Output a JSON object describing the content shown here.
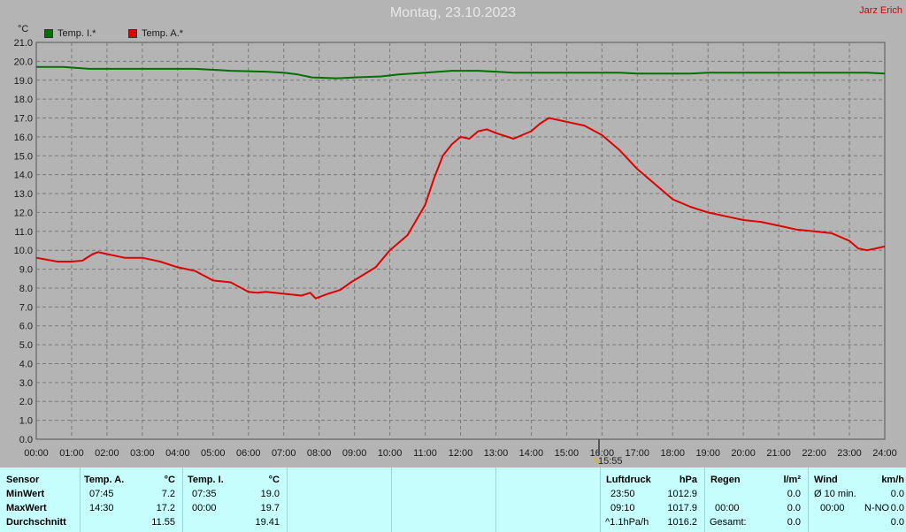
{
  "header": {
    "title": "Montag, 23.10.2023",
    "author": "Jarz Erich",
    "unit": "°C"
  },
  "legend": [
    {
      "label": "Temp. I.*",
      "color": "#007000"
    },
    {
      "label": "Temp. A.*",
      "color": "#e00000"
    }
  ],
  "now_marker": {
    "label": "15:55"
  },
  "chart_data": {
    "type": "line",
    "title": "Montag, 23.10.2023",
    "ylabel": "°C",
    "ylim": [
      0,
      21
    ],
    "xlim": [
      0,
      24
    ],
    "grid": true,
    "legend_position": "top-left",
    "y_ticks": [
      "0.0",
      "1.0",
      "2.0",
      "3.0",
      "4.0",
      "5.0",
      "6.0",
      "7.0",
      "8.0",
      "9.0",
      "10.0",
      "11.0",
      "12.0",
      "13.0",
      "14.0",
      "15.0",
      "16.0",
      "17.0",
      "18.0",
      "19.0",
      "20.0",
      "21.0"
    ],
    "x_ticks": [
      "00:00",
      "01:00",
      "02:00",
      "03:00",
      "04:00",
      "05:00",
      "06:00",
      "07:00",
      "08:00",
      "09:00",
      "10:00",
      "11:00",
      "12:00",
      "13:00",
      "14:00",
      "15:00",
      "16:00",
      "17:00",
      "18:00",
      "19:00",
      "20:00",
      "21:00",
      "22:00",
      "23:00",
      "24:00"
    ],
    "series": [
      {
        "name": "Temp. I.*",
        "color": "#007000",
        "x": [
          0,
          0.75,
          1.5,
          2.5,
          3.5,
          4.5,
          5.5,
          6.5,
          7,
          7.4,
          7.8,
          8.5,
          9,
          9.75,
          10.25,
          11,
          11.75,
          12,
          12.5,
          13,
          13.5,
          14,
          14.5,
          15,
          15.5,
          16,
          16.5,
          17,
          17.5,
          18,
          18.5,
          19,
          19.5,
          20,
          21,
          22,
          23,
          23.5,
          24
        ],
        "y": [
          19.7,
          19.7,
          19.6,
          19.6,
          19.6,
          19.6,
          19.5,
          19.45,
          19.4,
          19.3,
          19.15,
          19.1,
          19.15,
          19.2,
          19.3,
          19.4,
          19.5,
          19.5,
          19.5,
          19.45,
          19.4,
          19.4,
          19.4,
          19.4,
          19.4,
          19.4,
          19.4,
          19.35,
          19.35,
          19.35,
          19.35,
          19.4,
          19.4,
          19.4,
          19.4,
          19.4,
          19.4,
          19.4,
          19.35
        ]
      },
      {
        "name": "Temp. A.*",
        "color": "#e00000",
        "x": [
          0,
          0.3,
          0.6,
          1,
          1.3,
          1.6,
          1.75,
          2,
          2.5,
          3,
          3.5,
          4,
          4.5,
          5,
          5.5,
          6,
          6.25,
          6.5,
          7,
          7.5,
          7.75,
          7.9,
          8.25,
          8.6,
          8.9,
          9.25,
          9.6,
          10,
          10.5,
          11,
          11.25,
          11.5,
          11.75,
          12,
          12.25,
          12.5,
          12.75,
          13,
          13.5,
          14,
          14.25,
          14.5,
          14.75,
          15,
          15.5,
          16,
          16.5,
          17,
          17.5,
          18,
          18.5,
          19,
          19.5,
          20,
          20.5,
          21,
          21.5,
          22,
          22.5,
          23,
          23.25,
          23.5,
          23.75,
          24
        ],
        "y": [
          9.6,
          9.5,
          9.4,
          9.4,
          9.45,
          9.8,
          9.9,
          9.8,
          9.6,
          9.6,
          9.4,
          9.1,
          8.9,
          8.4,
          8.3,
          7.8,
          7.75,
          7.8,
          7.7,
          7.6,
          7.75,
          7.45,
          7.7,
          7.9,
          8.3,
          8.7,
          9.1,
          10.0,
          10.8,
          12.4,
          13.8,
          15.0,
          15.6,
          16.0,
          15.9,
          16.3,
          16.4,
          16.2,
          15.9,
          16.3,
          16.7,
          17.0,
          16.9,
          16.8,
          16.6,
          16.1,
          15.3,
          14.3,
          13.5,
          12.7,
          12.3,
          12.0,
          11.8,
          11.6,
          11.5,
          11.3,
          11.1,
          11.0,
          10.9,
          10.5,
          10.1,
          10.0,
          10.1,
          10.2
        ]
      }
    ]
  },
  "table": {
    "rows": {
      "sensor": "Sensor",
      "min": "MinWert",
      "max": "MaxWert",
      "avg": "Durchschnitt"
    },
    "temp_a": {
      "label": "Temp. A.",
      "unit": "°C",
      "min_time": "07:45",
      "min_val": "7.2",
      "max_time": "14:30",
      "max_val": "17.2",
      "avg": "11.55"
    },
    "temp_i": {
      "label": "Temp. I.",
      "unit": "°C",
      "min_time": "07:35",
      "min_val": "19.0",
      "max_time": "00:00",
      "max_val": "19.7",
      "avg": "19.41"
    },
    "pressure": {
      "label": "Luftdruck",
      "unit": "hPa",
      "min_time": "23:50",
      "min_val": "1012.9",
      "max_time": "09:10",
      "max_val": "1017.9",
      "trend": "^1.1hPa/h",
      "current": "1016.2"
    },
    "rain": {
      "label": "Regen",
      "unit": "l/m²",
      "v1": "0.0",
      "time": "00:00",
      "v2": "0.0",
      "total_label": "Gesamt:",
      "total": "0.0"
    },
    "wind": {
      "label": "Wind",
      "unit": "km/h",
      "avg_label": "Ø 10 min.",
      "avg": "0.0",
      "time": "00:00",
      "dir": "N-NO",
      "max": "0.0",
      "v3": "0.0"
    }
  }
}
